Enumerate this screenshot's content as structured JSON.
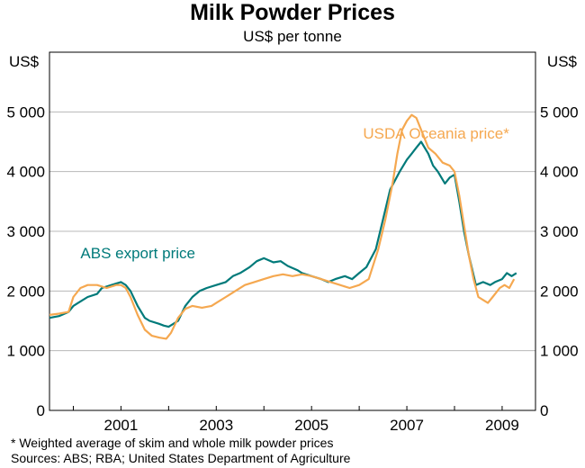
{
  "chart_data": {
    "type": "line",
    "title": "Milk Powder Prices",
    "subtitle": "US$ per tonne",
    "ylabel_left": "US$",
    "ylabel_right": "US$",
    "ylim": [
      0,
      6000
    ],
    "xlim": [
      1999.5,
      2009.7
    ],
    "yticks": [
      {
        "value": 0,
        "label": "0"
      },
      {
        "value": 1000,
        "label": "1 000"
      },
      {
        "value": 2000,
        "label": "2 000"
      },
      {
        "value": 3000,
        "label": "3 000"
      },
      {
        "value": 4000,
        "label": "4 000"
      },
      {
        "value": 5000,
        "label": "5 000"
      }
    ],
    "xticks": [
      {
        "value": 2001,
        "label": "2001"
      },
      {
        "value": 2003,
        "label": "2003"
      },
      {
        "value": 2005,
        "label": "2005"
      },
      {
        "value": 2007,
        "label": "2007"
      },
      {
        "value": 2009,
        "label": "2009"
      }
    ],
    "series": [
      {
        "name": "ABS export price",
        "color": "#007a7a",
        "label_at": [
          2000.15,
          2550
        ],
        "x": [
          1999.5,
          1999.7,
          1999.9,
          2000.0,
          2000.1,
          2000.3,
          2000.5,
          2000.6,
          2000.8,
          2001.0,
          2001.1,
          2001.2,
          2001.35,
          2001.5,
          2001.6,
          2001.8,
          2001.9,
          2002.0,
          2002.2,
          2002.35,
          2002.5,
          2002.65,
          2002.8,
          2003.0,
          2003.2,
          2003.35,
          2003.5,
          2003.7,
          2003.85,
          2004.0,
          2004.2,
          2004.35,
          2004.5,
          2004.7,
          2004.8,
          2005.0,
          2005.2,
          2005.35,
          2005.5,
          2005.7,
          2005.85,
          2006.0,
          2006.15,
          2006.35,
          2006.5,
          2006.65,
          2006.85,
          2007.0,
          2007.1,
          2007.2,
          2007.3,
          2007.45,
          2007.55,
          2007.65,
          2007.8,
          2007.9,
          2008.0,
          2008.1,
          2008.2,
          2008.3,
          2008.45,
          2008.6,
          2008.75,
          2008.85,
          2009.0,
          2009.1,
          2009.2,
          2009.3
        ],
        "values": [
          1550,
          1580,
          1650,
          1750,
          1800,
          1900,
          1950,
          2050,
          2100,
          2150,
          2100,
          2000,
          1750,
          1550,
          1500,
          1450,
          1420,
          1400,
          1500,
          1750,
          1900,
          2000,
          2050,
          2100,
          2150,
          2250,
          2300,
          2400,
          2500,
          2550,
          2480,
          2500,
          2420,
          2350,
          2300,
          2250,
          2200,
          2150,
          2200,
          2250,
          2200,
          2300,
          2400,
          2700,
          3200,
          3700,
          4000,
          4200,
          4300,
          4400,
          4500,
          4300,
          4100,
          4000,
          3800,
          3900,
          3950,
          3500,
          3000,
          2600,
          2100,
          2150,
          2100,
          2150,
          2200,
          2300,
          2250,
          2300
        ]
      },
      {
        "name": "USDA Oceania price*",
        "color": "#f5a850",
        "label_at": [
          2006.08,
          4550
        ],
        "x": [
          1999.5,
          1999.7,
          1999.9,
          2000.0,
          2000.15,
          2000.3,
          2000.5,
          2000.7,
          2000.9,
          2001.0,
          2001.1,
          2001.2,
          2001.35,
          2001.5,
          2001.65,
          2001.8,
          2001.95,
          2002.05,
          2002.2,
          2002.35,
          2002.5,
          2002.7,
          2002.9,
          2003.0,
          2003.2,
          2003.4,
          2003.6,
          2003.8,
          2004.0,
          2004.2,
          2004.4,
          2004.6,
          2004.8,
          2005.0,
          2005.2,
          2005.4,
          2005.6,
          2005.8,
          2006.0,
          2006.2,
          2006.4,
          2006.55,
          2006.7,
          2006.8,
          2006.9,
          2007.0,
          2007.1,
          2007.2,
          2007.3,
          2007.45,
          2007.6,
          2007.75,
          2007.9,
          2008.0,
          2008.1,
          2008.2,
          2008.3,
          2008.4,
          2008.5,
          2008.6,
          2008.7,
          2008.8,
          2008.95,
          2009.05,
          2009.15,
          2009.25
        ],
        "values": [
          1600,
          1620,
          1650,
          1900,
          2050,
          2100,
          2100,
          2050,
          2100,
          2100,
          2050,
          1900,
          1600,
          1350,
          1250,
          1220,
          1200,
          1300,
          1550,
          1700,
          1750,
          1720,
          1750,
          1800,
          1900,
          2000,
          2100,
          2150,
          2200,
          2250,
          2280,
          2250,
          2280,
          2250,
          2200,
          2150,
          2100,
          2050,
          2100,
          2200,
          2700,
          3200,
          3800,
          4300,
          4700,
          4850,
          4950,
          4900,
          4700,
          4400,
          4300,
          4150,
          4100,
          4000,
          3600,
          3100,
          2600,
          2200,
          1900,
          1850,
          1800,
          1900,
          2050,
          2100,
          2050,
          2200
        ]
      }
    ],
    "notes": [
      "*    Weighted average of skim and whole milk powder prices",
      "Sources: ABS; RBA; United States Department of Agriculture"
    ],
    "grid": true
  }
}
